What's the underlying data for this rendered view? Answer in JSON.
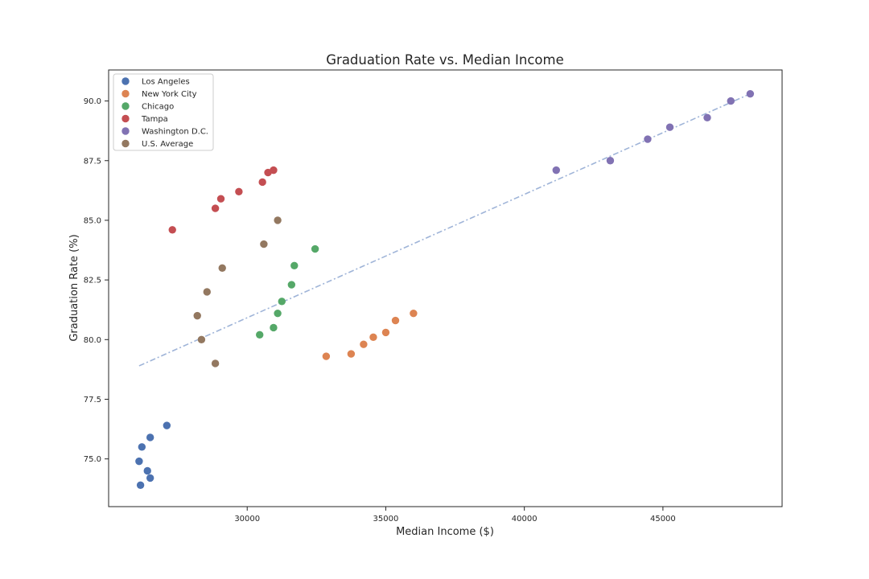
{
  "chart_data": {
    "type": "scatter",
    "title": "Graduation Rate vs. Median Income",
    "xlabel": "Median Income ($)",
    "ylabel": "Graduation Rate (%)",
    "xlim": [
      25000,
      49300
    ],
    "ylim": [
      73.0,
      91.3
    ],
    "xticks": [
      30000,
      35000,
      40000,
      45000
    ],
    "yticks": [
      75.0,
      77.5,
      80.0,
      82.5,
      85.0,
      87.5,
      90.0
    ],
    "grid": false,
    "legend_position": "top-left",
    "series": [
      {
        "name": "Los Angeles",
        "color": "#4c72b0",
        "points": [
          [
            26100,
            74.9
          ],
          [
            26200,
            75.5
          ],
          [
            26150,
            73.9
          ],
          [
            26400,
            74.5
          ],
          [
            26500,
            75.9
          ],
          [
            26500,
            74.2
          ],
          [
            27100,
            76.4
          ]
        ]
      },
      {
        "name": "New York City",
        "color": "#dd8452",
        "points": [
          [
            32850,
            79.3
          ],
          [
            33750,
            79.4
          ],
          [
            34200,
            79.8
          ],
          [
            34550,
            80.1
          ],
          [
            35000,
            80.3
          ],
          [
            35350,
            80.8
          ],
          [
            36000,
            81.1
          ]
        ]
      },
      {
        "name": "Chicago",
        "color": "#55a868",
        "points": [
          [
            30450,
            80.2
          ],
          [
            30950,
            80.5
          ],
          [
            31100,
            81.1
          ],
          [
            31250,
            81.6
          ],
          [
            31600,
            82.3
          ],
          [
            31700,
            83.1
          ],
          [
            32450,
            83.8
          ]
        ]
      },
      {
        "name": "Tampa",
        "color": "#c44e52",
        "points": [
          [
            27300,
            84.6
          ],
          [
            28850,
            85.5
          ],
          [
            29050,
            85.9
          ],
          [
            29700,
            86.2
          ],
          [
            30550,
            86.6
          ],
          [
            30750,
            87.0
          ],
          [
            30950,
            87.1
          ]
        ]
      },
      {
        "name": "Washington D.C.",
        "color": "#8172b3",
        "points": [
          [
            41150,
            87.1
          ],
          [
            43100,
            87.5
          ],
          [
            44450,
            88.4
          ],
          [
            45250,
            88.9
          ],
          [
            46600,
            89.3
          ],
          [
            47450,
            90.0
          ],
          [
            48150,
            90.3
          ]
        ]
      },
      {
        "name": "U.S. Average",
        "color": "#937860",
        "points": [
          [
            28200,
            81.0
          ],
          [
            28350,
            80.0
          ],
          [
            28550,
            82.0
          ],
          [
            28850,
            79.0
          ],
          [
            29100,
            83.0
          ],
          [
            30600,
            84.0
          ],
          [
            31100,
            85.0
          ]
        ]
      }
    ],
    "trend_line": {
      "style": "dashed",
      "color": "#9fb4d8",
      "points": [
        [
          26100,
          78.9
        ],
        [
          48150,
          90.3
        ]
      ]
    }
  }
}
